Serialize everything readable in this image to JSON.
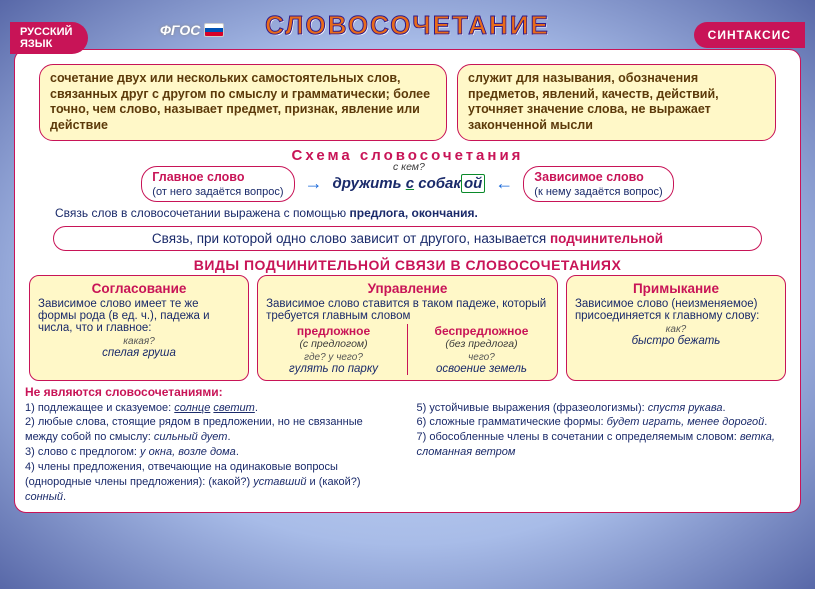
{
  "badges": {
    "left_line1": "РУССКИЙ",
    "left_line2": "ЯЗЫК",
    "fgos": "ФГОС",
    "right": "СИНТАКСИС"
  },
  "title": "СЛОВОСОЧЕТАНИЕ",
  "def1": "сочетание двух или нескольких самостоятельных слов, связанных друг с другом по смыслу и грамматически; более точно, чем слово, называет предмет, признак, явление или действие",
  "def2": "служит для называния, обозначения предметов, явлений, качеств, действий, уточняет значение слова, не выражает законченной мысли",
  "scheme": {
    "title": "Схема  словосочетания",
    "main_word": "Главное слово",
    "main_note": "(от него задаётся вопрос)",
    "dep_word": "Зависимое слово",
    "dep_note": "(к нему задаётся вопрос)",
    "question": "с кем?",
    "phrase_root": "дружить ",
    "phrase_prep": "с",
    "phrase_space": " собак",
    "phrase_ending": "ой",
    "footer_pre": "Связь слов в словосочетании выражена с помощью ",
    "footer_bold": "предлога, окончания."
  },
  "banner": {
    "text": "Связь, при которой одно слово зависит от другого, называется ",
    "hl": "подчинительной"
  },
  "types_title": "ВИДЫ ПОДЧИНИТЕЛЬНОЙ СВЯЗИ В СЛОВОСОЧЕТАНИЯХ",
  "types": {
    "agree": {
      "title": "Согласование",
      "desc": "Зависимое слово имеет те же формы рода (в ед. ч.), падежа и числа, что и главное:",
      "q": "какая?",
      "ex": "спелая груша"
    },
    "govern": {
      "title": "Управление",
      "desc": "Зависимое слово ставится в таком падеже, который требуется главным словом",
      "sub1": "предложное",
      "sub1_note": "(с предлогом)",
      "sub2": "беспредложное",
      "sub2_note": "(без предлога)",
      "q1": "где? у чего?",
      "ex1": "гулять по парку",
      "q2": "чего?",
      "ex2": "освоение земель"
    },
    "adjoin": {
      "title": "Примыкание",
      "desc": "Зависимое слово (неизменяемое) присоединяется к главному слову:",
      "q": "как?",
      "ex": "быстро бежать"
    }
  },
  "not": {
    "title": "Не являются словосочетаниями:",
    "items_left": [
      "1) подлежащее и сказуемое: <i class='und'>солнце</i> <i class='und'>светит</i>.",
      "2) любые слова, стоящие рядом в предложении, но не связанные между собой по смыслу: <i>сильный дует</i>.",
      "3) слово с предлогом: <i>у окна, возле дома</i>.",
      "4) члены предложения, отвечающие на одинаковые вопросы (однородные члены предложения): (какой?) <i>уставший</i> и (какой?) <i>сонный</i>."
    ],
    "items_right": [
      "5) устойчивые выражения (фразеологизмы): <i>спустя рукава</i>.",
      "6) сложные грамматические формы: <i>будет играть, менее дорогой</i>.",
      "7) обособленные члены в сочетании с определяемым словом: <i>ветка, сломанная ветром</i>"
    ]
  },
  "colors": {
    "pink": "#c81457",
    "yellow": "#fff8c8",
    "navy": "#1a2a6a",
    "orange": "#e86b1a"
  }
}
